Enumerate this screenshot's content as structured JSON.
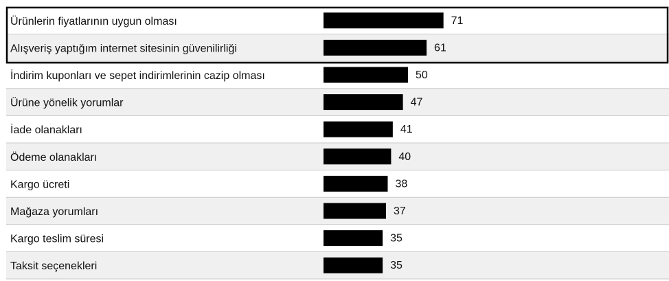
{
  "chart_data": {
    "type": "bar",
    "orientation": "horizontal",
    "title": "",
    "xlabel": "",
    "ylabel": "",
    "xlim": [
      0,
      100
    ],
    "grid": false,
    "legend": "none",
    "bar_color": "#000000",
    "row_colors": [
      "#ffffff",
      "#f0f0f0"
    ],
    "highlighted_rows": 2,
    "categories": [
      "Ürünlerin fiyatlarının uygun olması",
      "Alışveriş yaptığım internet sitesinin güvenilirliği",
      "İndirim kuponları ve sepet indirimlerinin cazip olması",
      "Ürüne yönelik yorumlar",
      "İade olanakları",
      "Ödeme olanakları",
      "Kargo ücreti",
      "Mağaza yorumları",
      "Kargo teslim süresi",
      "Taksit seçenekleri"
    ],
    "values": [
      71,
      61,
      50,
      47,
      41,
      40,
      38,
      37,
      35,
      35
    ]
  }
}
